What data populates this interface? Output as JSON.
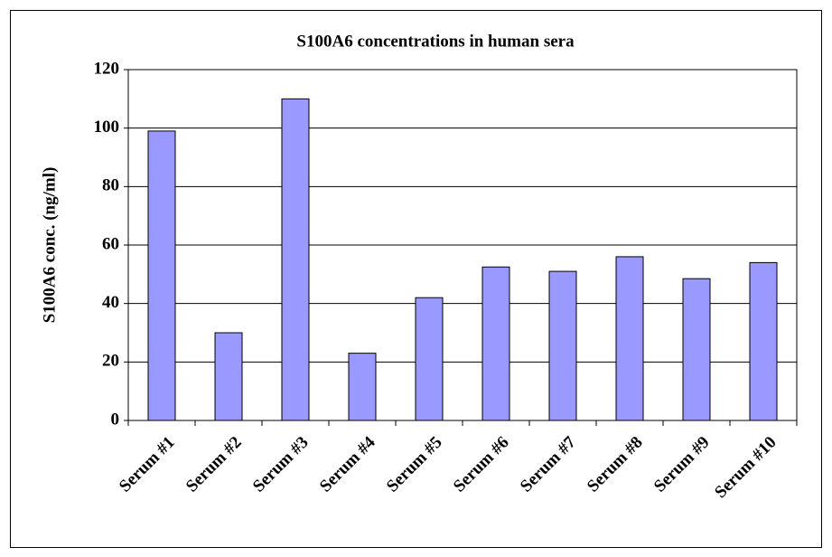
{
  "chart_data": {
    "type": "bar",
    "title": "S100A6 concentrations in human sera",
    "y_label": "S100A6 conc. (ng/ml)",
    "categories": [
      "Serum #1",
      "Serum #2",
      "Serum #3",
      "Serum #4",
      "Serum #5",
      "Serum #6",
      "Serum #7",
      "Serum #8",
      "Serum #9",
      "Serum #10"
    ],
    "values": [
      99,
      30,
      110,
      23,
      42,
      52.5,
      51,
      56,
      48.5,
      54
    ],
    "color": "#9999ff",
    "ylim": [
      0,
      120
    ],
    "yticks": [
      0,
      20,
      40,
      60,
      80,
      100,
      120
    ],
    "grid": true
  }
}
